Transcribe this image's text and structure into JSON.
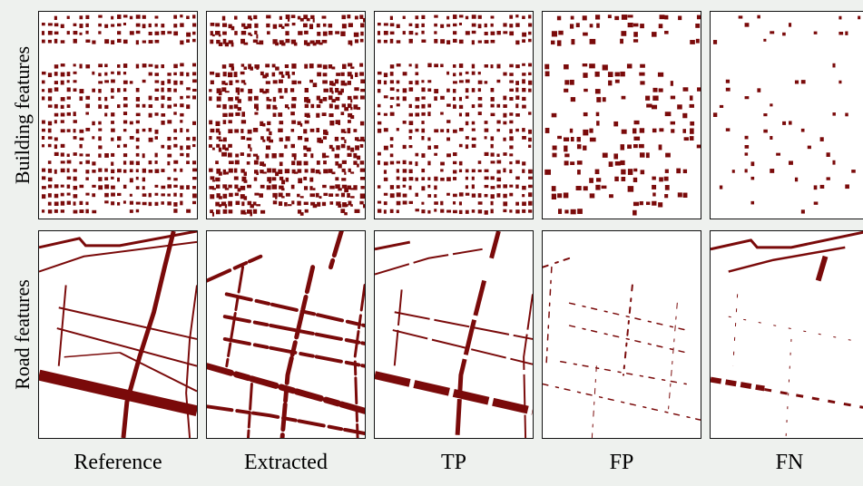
{
  "figure": {
    "row_labels": [
      "Building features",
      "Road features"
    ],
    "column_labels": [
      "Reference",
      "Extracted",
      "TP",
      "FP",
      "FN"
    ],
    "feature_color": "#7a0a0a",
    "panels": [
      {
        "row": "building",
        "column": "Reference",
        "content": "building footprints"
      },
      {
        "row": "building",
        "column": "Extracted",
        "content": "extracted buildings"
      },
      {
        "row": "building",
        "column": "TP",
        "content": "true positive buildings"
      },
      {
        "row": "building",
        "column": "FP",
        "content": "false positive buildings"
      },
      {
        "row": "building",
        "column": "FN",
        "content": "false negative buildings"
      },
      {
        "row": "road",
        "column": "Reference",
        "content": "road network"
      },
      {
        "row": "road",
        "column": "Extracted",
        "content": "extracted roads"
      },
      {
        "row": "road",
        "column": "TP",
        "content": "true positive roads"
      },
      {
        "row": "road",
        "column": "FP",
        "content": "false positive roads"
      },
      {
        "row": "road",
        "column": "FN",
        "content": "false negative roads"
      }
    ]
  }
}
